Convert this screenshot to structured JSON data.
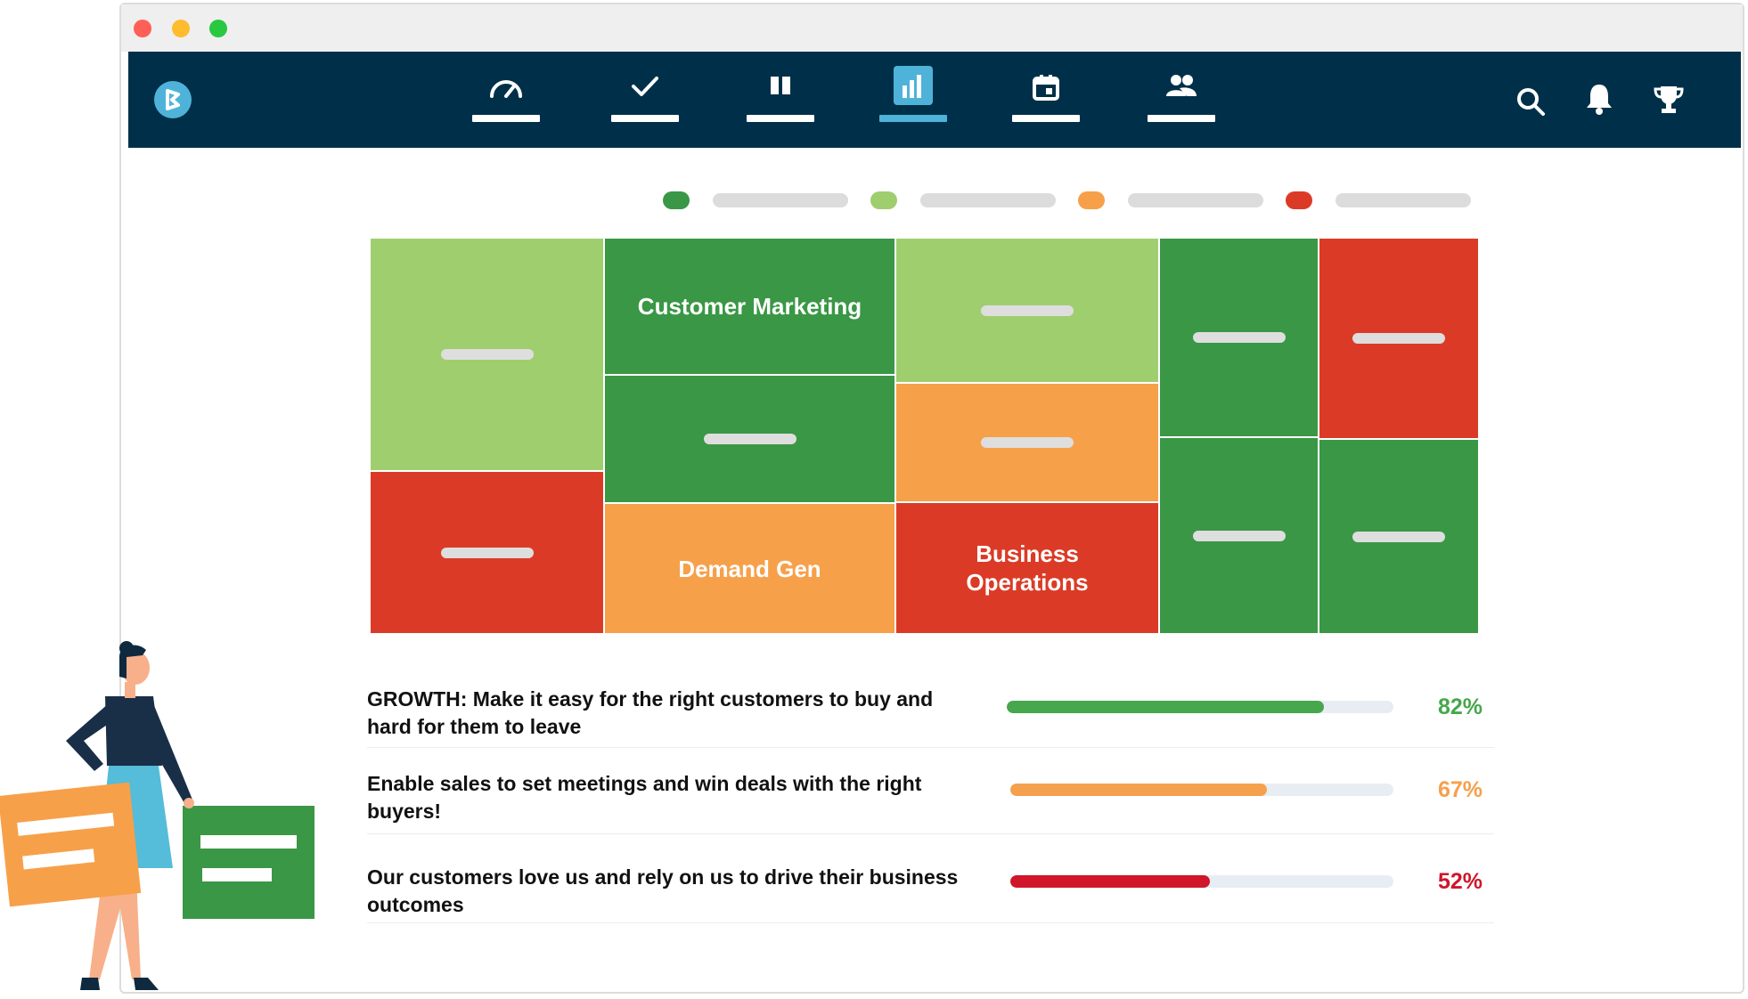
{
  "colors": {
    "dark_green": "#3a9745",
    "light_green": "#9fce6f",
    "orange": "#f7a04a",
    "red": "#db3b26",
    "navbar": "#003049",
    "active_nav": "#4fb3d9"
  },
  "nav": {
    "icons": [
      "speedometer-icon",
      "checkmark-icon",
      "columns-icon",
      "bar-chart-icon",
      "calendar-icon",
      "users-icon"
    ],
    "active": "bar-chart-icon"
  },
  "tools": [
    "search-icon",
    "bell-icon",
    "trophy-icon"
  ],
  "legend_colors": [
    "#3a9745",
    "#9fce6f",
    "#f7a04a",
    "#db3b26"
  ],
  "treemap": {
    "customer_marketing": "Customer Marketing",
    "demand_gen": "Demand Gen",
    "business_operations": "Business Operations"
  },
  "goals": [
    {
      "text": "GROWTH: Make it easy for the right customers to buy and hard for them to leave",
      "percent_label": "82%",
      "progress": 0.82,
      "color": "#46a74c"
    },
    {
      "text": "Enable sales to set meetings and win deals with the right buyers!",
      "percent_label": "67%",
      "progress": 0.67,
      "color": "#f5a04c"
    },
    {
      "text": "Our customers love us and rely on us to drive their business outcomes",
      "percent_label": "52%",
      "progress": 0.52,
      "color": "#d0162a"
    }
  ]
}
